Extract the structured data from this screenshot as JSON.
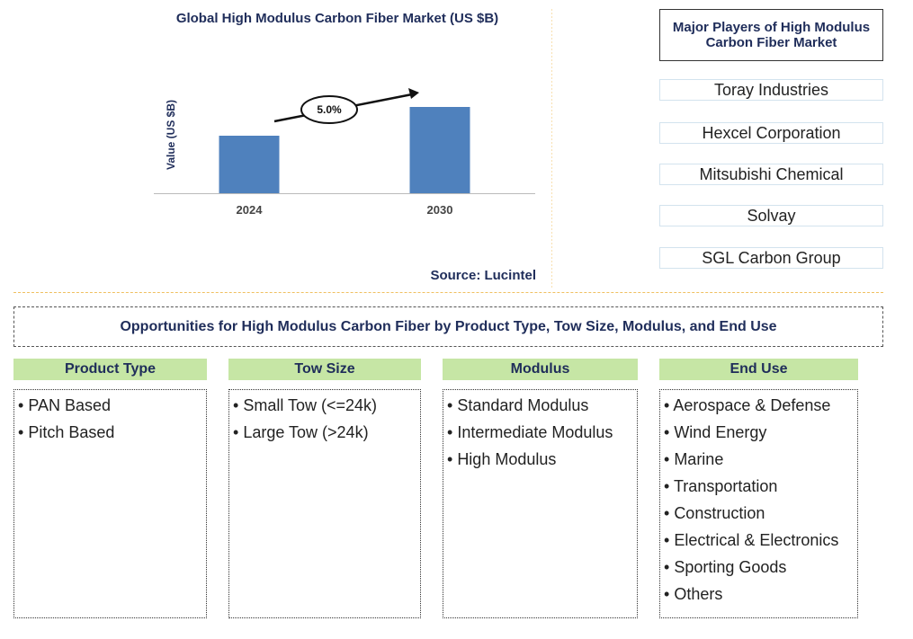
{
  "chart_data": {
    "type": "bar",
    "title": "Global High Modulus Carbon Fiber Market (US $B)",
    "y_label": "Value (US $B)",
    "categories": [
      "2024",
      "2030"
    ],
    "values": [
      2.0,
      3.0
    ],
    "color": "#4f81bd",
    "ylim": [
      0,
      3.0
    ],
    "annotation": "5.0%",
    "source": "Source: Lucintel"
  },
  "players": {
    "title": "Major Players of High Modulus Carbon Fiber Market",
    "items": [
      "Toray Industries",
      "Hexcel Corporation",
      "Mitsubishi Chemical",
      "Solvay",
      "SGL Carbon Group"
    ]
  },
  "opportunities": {
    "title": "Opportunities for High Modulus Carbon Fiber by Product Type, Tow Size, Modulus, and End Use",
    "segments": [
      {
        "name": "Product Type",
        "items": [
          "PAN Based",
          "Pitch Based"
        ]
      },
      {
        "name": "Tow Size",
        "items": [
          "Small Tow (<=24k)",
          "Large Tow (>24k)"
        ]
      },
      {
        "name": "Modulus",
        "items": [
          "Standard Modulus",
          "Intermediate Modulus",
          "High Modulus"
        ]
      },
      {
        "name": "End Use",
        "items": [
          "Aerospace & Defense",
          "Wind Energy",
          "Marine",
          "Transportation",
          "Construction",
          "Electrical & Electronics",
          "Sporting Goods",
          "Others"
        ]
      }
    ]
  }
}
